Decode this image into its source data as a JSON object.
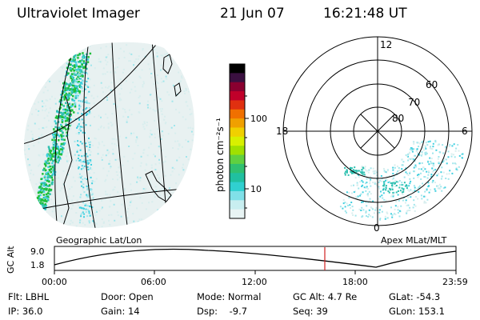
{
  "header": {
    "title": "Ultraviolet Imager",
    "date": "21 Jun 07",
    "time": "16:21:48 UT"
  },
  "colorbar": {
    "unit_label": "photon cm⁻²s⁻¹",
    "ticks": [
      "100",
      "10"
    ],
    "colors": [
      "#000000",
      "#3a1040",
      "#8a0030",
      "#c0002a",
      "#e03010",
      "#f07000",
      "#f0a000",
      "#f0d000",
      "#d8f000",
      "#a0e000",
      "#60d040",
      "#30c070",
      "#20c0a0",
      "#30d0d0",
      "#80e0e8",
      "#c8eef0",
      "#e8f4f4"
    ]
  },
  "left_panel": {
    "label": "Geographic Lat/Lon",
    "aurora_colors": [
      "#1fbf3a",
      "#2ec0b0",
      "#40d0e0",
      "#a0e6ec",
      "#d8eeee"
    ]
  },
  "right_panel": {
    "label": "Apex MLat/MLT",
    "lat_labels": [
      "60",
      "70",
      "80"
    ],
    "time_labels": {
      "top": "12",
      "left": "18",
      "right": "6",
      "bottom": "0"
    }
  },
  "timeline": {
    "y_label": "GC Alt",
    "y_ticks": [
      "9.0",
      "1.8"
    ],
    "x_ticks": [
      "00:00",
      "06:00",
      "12:00",
      "18:00",
      "23:59"
    ],
    "current_marker_color": "#d02020"
  },
  "status": {
    "flt": "Flt: LBHL",
    "ip": "IP: 36.0",
    "door": "Door: Open",
    "gain": "Gain: 14",
    "mode": "Mode: Normal",
    "dsp": "Dsp:    -9.7",
    "gc_alt": "GC Alt: 4.7 Re",
    "seq": "Seq: 39",
    "glat": "GLat: -54.3",
    "glon": "GLon: 153.1"
  }
}
